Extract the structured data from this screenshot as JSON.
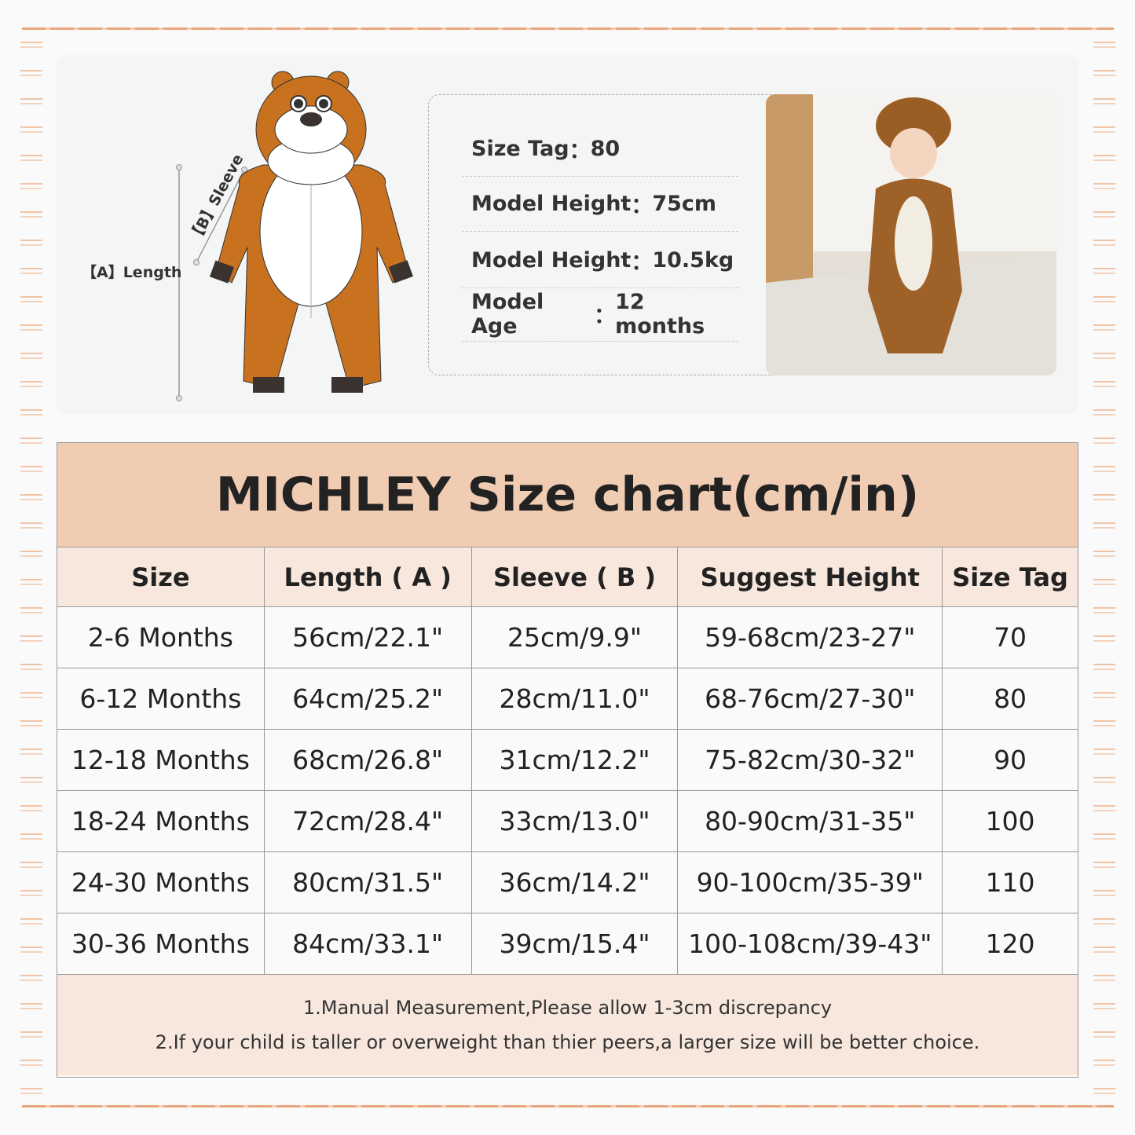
{
  "diagram": {
    "length_label": "【A】Length",
    "sleeve_label": "【B】Sleeve"
  },
  "model_info": [
    {
      "label": "Size Tag",
      "value": "80"
    },
    {
      "label": "Model Height",
      "value": "75cm"
    },
    {
      "label": "Model Height",
      "value": "10.5kg"
    },
    {
      "label": "Model Age",
      "value": "12 months"
    }
  ],
  "title": "MICHLEY Size chart(cm/in)",
  "table": {
    "headers": [
      "Size",
      "Length ( A )",
      "Sleeve ( B )",
      "Suggest Height",
      "Size Tag"
    ],
    "rows": [
      [
        "2-6 Months",
        "56cm/22.1\"",
        "25cm/9.9\"",
        "59-68cm/23-27\"",
        "70"
      ],
      [
        "6-12 Months",
        "64cm/25.2\"",
        "28cm/11.0\"",
        "68-76cm/27-30\"",
        "80"
      ],
      [
        "12-18 Months",
        "68cm/26.8\"",
        "31cm/12.2\"",
        "75-82cm/30-32\"",
        "90"
      ],
      [
        "18-24 Months",
        "72cm/28.4\"",
        "33cm/13.0\"",
        "80-90cm/31-35\"",
        "100"
      ],
      [
        "24-30 Months",
        "80cm/31.5\"",
        "36cm/14.2\"",
        "90-100cm/35-39\"",
        "110"
      ],
      [
        "30-36 Months",
        "84cm/33.1\"",
        "39cm/15.4\"",
        "100-108cm/39-43\"",
        "120"
      ]
    ]
  },
  "notes": [
    "1.Manual Measurement,Please allow 1-3cm discrepancy",
    "2.If your child is taller or overweight than thier peers,a larger size will be better choice."
  ],
  "colors": {
    "title_bg": "#f0ccb3",
    "header_bg": "#f7e7dd",
    "bear_brown": "#c8711f",
    "border_accent": "#e8a67a"
  }
}
